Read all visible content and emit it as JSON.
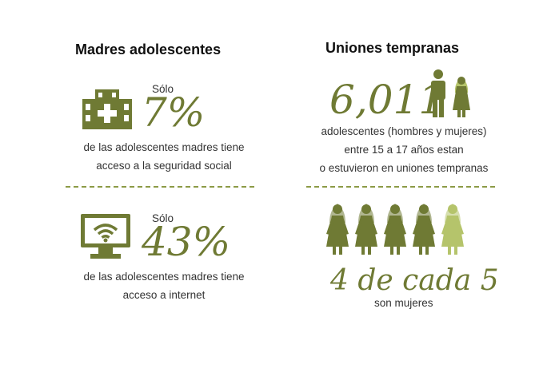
{
  "colors": {
    "olive": "#6f7a34",
    "olive_light": "#b5c46b",
    "text": "#333333"
  },
  "left": {
    "heading": "Madres adolescentes",
    "stat1": {
      "icon": "hospital-icon",
      "prefix": "Sólo",
      "value": "7%",
      "line1": "de las adolescentes madres tiene",
      "line2": "acceso a la seguridad social"
    },
    "stat2": {
      "icon": "wifi-monitor-icon",
      "prefix": "Sólo",
      "value": "43%",
      "line1": "de las adolescentes madres tiene",
      "line2": "acceso a internet"
    }
  },
  "right": {
    "heading": "Uniones tempranas",
    "stat1": {
      "icon": "couple-icon",
      "value": "6,011",
      "line1": "adolescentes (hombres y mujeres)",
      "line2": "entre 15 a 17 años estan",
      "line3": "o estuvieron en uniones tempranas"
    },
    "stat2": {
      "icon": "women-icons",
      "highlighted": 4,
      "total": 5,
      "value": "4 de cada 5",
      "caption": "son mujeres"
    }
  }
}
